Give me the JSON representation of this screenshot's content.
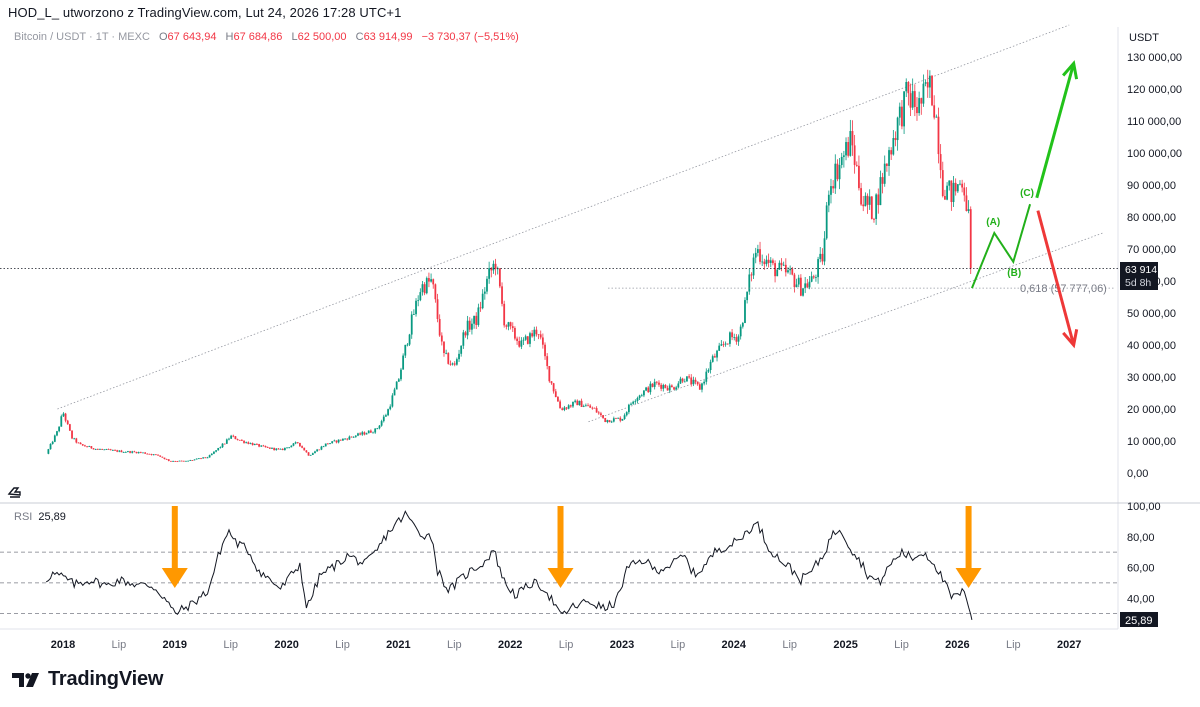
{
  "header": {
    "title": "HOD_L_ utworzono z TradingView.com, Lut 24, 2026 17:28 UTC+1"
  },
  "symbol": {
    "name": "Bitcoin / USDT · 1T · MEXC",
    "o_label": "O",
    "o_value": "67 643,94",
    "h_label": "H",
    "h_value": "67 684,86",
    "l_label": "L",
    "l_value": "62 500,00",
    "c_label": "C",
    "c_value": "63 914,99",
    "change": "−3 730,37 (−5,51%)"
  },
  "price_axis": {
    "currency": "USDT",
    "current_price": "63 914,99",
    "countdown": "5d 8h"
  },
  "fib_label": "0,618 (57 777,06)",
  "wave_labels": {
    "a": "(A)",
    "b": "(B)",
    "c": "(C)"
  },
  "rsi": {
    "label": "RSI",
    "value": "25,89",
    "axis_value": "25,89"
  },
  "brand": {
    "name": "TradingView"
  },
  "colors": {
    "up": "#089981",
    "down": "#f23645",
    "green_arrow": "#22c21a",
    "red_arrow": "#ee3838",
    "orange_arrow": "#ff9800",
    "wave": "#22b01a"
  },
  "chart_data": [
    {
      "type": "candlestick",
      "title": "Bitcoin / USDT · 1T · MEXC",
      "time_axis": [
        "2018",
        "Lip",
        "2019",
        "Lip",
        "2020",
        "Lip",
        "2021",
        "Lip",
        "2022",
        "Lip",
        "2023",
        "Lip",
        "2024",
        "Lip",
        "2025",
        "Lip",
        "2026",
        "Lip",
        "2027"
      ],
      "y_ticks": [
        "130 000,00",
        "120 000,00",
        "110 000,00",
        "100 000,00",
        "90 000,00",
        "80 000,00",
        "70 000,00",
        "60 000,00",
        "50 000,00",
        "40 000,00",
        "30 000,00",
        "20 000,00",
        "10 000,00",
        "0,00"
      ],
      "ylim": [
        -5000,
        138000
      ],
      "close_path": [
        [
          2017.85,
          6000
        ],
        [
          2017.95,
          13000
        ],
        [
          2018.0,
          19000
        ],
        [
          2018.08,
          11000
        ],
        [
          2018.15,
          8800
        ],
        [
          2018.3,
          7500
        ],
        [
          2018.5,
          6800
        ],
        [
          2018.7,
          6400
        ],
        [
          2018.85,
          5500
        ],
        [
          2018.95,
          3800
        ],
        [
          2019.1,
          3700
        ],
        [
          2019.3,
          5000
        ],
        [
          2019.45,
          9500
        ],
        [
          2019.5,
          11500
        ],
        [
          2019.6,
          10000
        ],
        [
          2019.8,
          8000
        ],
        [
          2019.95,
          7200
        ],
        [
          2020.1,
          9500
        ],
        [
          2020.2,
          5500
        ],
        [
          2020.35,
          9000
        ],
        [
          2020.6,
          11500
        ],
        [
          2020.8,
          13500
        ],
        [
          2020.9,
          19000
        ],
        [
          2021.0,
          29000
        ],
        [
          2021.1,
          45000
        ],
        [
          2021.2,
          58000
        ],
        [
          2021.3,
          60000
        ],
        [
          2021.4,
          37000
        ],
        [
          2021.5,
          33000
        ],
        [
          2021.6,
          45000
        ],
        [
          2021.7,
          48000
        ],
        [
          2021.8,
          61000
        ],
        [
          2021.87,
          66000
        ],
        [
          2021.95,
          47000
        ],
        [
          2022.1,
          40000
        ],
        [
          2022.25,
          45000
        ],
        [
          2022.35,
          30000
        ],
        [
          2022.45,
          20000
        ],
        [
          2022.6,
          22000
        ],
        [
          2022.75,
          20000
        ],
        [
          2022.85,
          16500
        ],
        [
          2023.0,
          17000
        ],
        [
          2023.1,
          23000
        ],
        [
          2023.3,
          28000
        ],
        [
          2023.45,
          26500
        ],
        [
          2023.55,
          30000
        ],
        [
          2023.7,
          26500
        ],
        [
          2023.8,
          35000
        ],
        [
          2023.95,
          42000
        ],
        [
          2024.05,
          43000
        ],
        [
          2024.15,
          62000
        ],
        [
          2024.2,
          70000
        ],
        [
          2024.35,
          64000
        ],
        [
          2024.5,
          62000
        ],
        [
          2024.6,
          58000
        ],
        [
          2024.7,
          60000
        ],
        [
          2024.8,
          68000
        ],
        [
          2024.85,
          90000
        ],
        [
          2024.95,
          97000
        ],
        [
          2025.05,
          104000
        ],
        [
          2025.15,
          85000
        ],
        [
          2025.25,
          82000
        ],
        [
          2025.35,
          95000
        ],
        [
          2025.45,
          108000
        ],
        [
          2025.55,
          118000
        ],
        [
          2025.65,
          114000
        ],
        [
          2025.75,
          121000
        ],
        [
          2025.8,
          115000
        ],
        [
          2025.87,
          90000
        ],
        [
          2025.95,
          87000
        ],
        [
          2026.05,
          92000
        ],
        [
          2026.1,
          80000
        ],
        [
          2026.13,
          63914.99
        ]
      ],
      "channel_upper": [
        [
          2017.95,
          20000
        ],
        [
          2027.0,
          140000
        ]
      ],
      "channel_lower": [
        [
          2022.7,
          16000
        ],
        [
          2027.3,
          75000
        ]
      ],
      "fib_0618": 57777.06,
      "current_price": 63914.99,
      "wave_projection": {
        "start": [
          2026.13,
          57777.06
        ],
        "A": [
          2026.33,
          75000
        ],
        "B": [
          2026.5,
          66000
        ],
        "C": [
          2026.65,
          84000
        ]
      },
      "bull_target": [
        [
          2026.71,
          86000
        ],
        [
          2027.04,
          128000
        ]
      ],
      "bear_target": [
        [
          2026.72,
          82000
        ],
        [
          2027.04,
          40000
        ]
      ]
    },
    {
      "type": "line",
      "title": "RSI",
      "y_ticks": [
        "100,00",
        "80,00",
        "60,00",
        "40,00",
        "25,89"
      ],
      "ylim": [
        20,
        100
      ],
      "levels": [
        30,
        50,
        70
      ],
      "series": [
        [
          2017.85,
          52
        ],
        [
          2017.9,
          56
        ],
        [
          2018.0,
          54
        ],
        [
          2018.1,
          49
        ],
        [
          2018.25,
          52
        ],
        [
          2018.4,
          48
        ],
        [
          2018.5,
          52
        ],
        [
          2018.65,
          49
        ],
        [
          2018.8,
          48
        ],
        [
          2018.9,
          41
        ],
        [
          2019.0,
          30
        ],
        [
          2019.15,
          36
        ],
        [
          2019.3,
          45
        ],
        [
          2019.4,
          70
        ],
        [
          2019.48,
          84
        ],
        [
          2019.55,
          76
        ],
        [
          2019.65,
          72
        ],
        [
          2019.75,
          58
        ],
        [
          2019.85,
          52
        ],
        [
          2019.95,
          46
        ],
        [
          2020.05,
          56
        ],
        [
          2020.12,
          62
        ],
        [
          2020.18,
          33
        ],
        [
          2020.3,
          55
        ],
        [
          2020.45,
          62
        ],
        [
          2020.55,
          68
        ],
        [
          2020.7,
          62
        ],
        [
          2020.8,
          70
        ],
        [
          2020.9,
          82
        ],
        [
          2021.0,
          90
        ],
        [
          2021.07,
          95
        ],
        [
          2021.13,
          88
        ],
        [
          2021.2,
          82
        ],
        [
          2021.3,
          80
        ],
        [
          2021.35,
          58
        ],
        [
          2021.45,
          45
        ],
        [
          2021.55,
          52
        ],
        [
          2021.65,
          58
        ],
        [
          2021.78,
          64
        ],
        [
          2021.85,
          72
        ],
        [
          2021.95,
          50
        ],
        [
          2022.05,
          42
        ],
        [
          2022.2,
          50
        ],
        [
          2022.3,
          47
        ],
        [
          2022.4,
          36
        ],
        [
          2022.45,
          28
        ],
        [
          2022.55,
          34
        ],
        [
          2022.7,
          38
        ],
        [
          2022.85,
          33
        ],
        [
          2022.95,
          38
        ],
        [
          2023.05,
          60
        ],
        [
          2023.2,
          65
        ],
        [
          2023.3,
          58
        ],
        [
          2023.45,
          62
        ],
        [
          2023.55,
          68
        ],
        [
          2023.65,
          55
        ],
        [
          2023.75,
          62
        ],
        [
          2023.85,
          72
        ],
        [
          2023.95,
          74
        ],
        [
          2024.05,
          78
        ],
        [
          2024.15,
          86
        ],
        [
          2024.22,
          88
        ],
        [
          2024.3,
          74
        ],
        [
          2024.4,
          66
        ],
        [
          2024.5,
          60
        ],
        [
          2024.6,
          52
        ],
        [
          2024.7,
          58
        ],
        [
          2024.8,
          68
        ],
        [
          2024.87,
          80
        ],
        [
          2024.95,
          86
        ],
        [
          2025.05,
          72
        ],
        [
          2025.15,
          62
        ],
        [
          2025.2,
          55
        ],
        [
          2025.3,
          50
        ],
        [
          2025.4,
          62
        ],
        [
          2025.5,
          70
        ],
        [
          2025.6,
          66
        ],
        [
          2025.7,
          70
        ],
        [
          2025.8,
          62
        ],
        [
          2025.87,
          52
        ],
        [
          2025.95,
          40
        ],
        [
          2026.05,
          44
        ],
        [
          2026.1,
          36
        ],
        [
          2026.13,
          25.89
        ]
      ],
      "current_value": 25.89,
      "highlight_arrows_at": [
        2019.0,
        2022.45,
        2026.1
      ]
    }
  ]
}
